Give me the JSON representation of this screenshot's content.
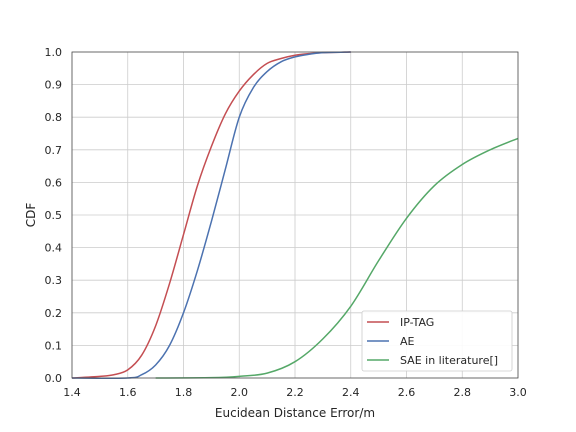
{
  "chart_data": {
    "type": "line",
    "title": "",
    "xlabel": "Eucidean Distance Error/m",
    "ylabel": "CDF",
    "xlim": [
      1.4,
      3.0
    ],
    "ylim": [
      0.0,
      1.0
    ],
    "x_ticks": [
      "1.4",
      "1.6",
      "1.8",
      "2.0",
      "2.2",
      "2.4",
      "2.6",
      "2.8",
      "3.0"
    ],
    "y_ticks": [
      "0.0",
      "0.1",
      "0.2",
      "0.3",
      "0.4",
      "0.5",
      "0.6",
      "0.7",
      "0.8",
      "0.9",
      "1.0"
    ],
    "grid": true,
    "legend_position": "bottom-right",
    "series": [
      {
        "name": "IP-TAG",
        "color": "#c44e52",
        "x": [
          1.4,
          1.5,
          1.55,
          1.6,
          1.65,
          1.7,
          1.75,
          1.8,
          1.85,
          1.9,
          1.95,
          2.0,
          2.05,
          2.1,
          2.15,
          2.2,
          2.25,
          2.3,
          2.4
        ],
        "y": [
          0.0,
          0.005,
          0.01,
          0.025,
          0.07,
          0.16,
          0.29,
          0.44,
          0.59,
          0.71,
          0.81,
          0.88,
          0.93,
          0.965,
          0.98,
          0.99,
          0.995,
          0.998,
          1.0
        ]
      },
      {
        "name": "AE",
        "color": "#4c72b0",
        "x": [
          1.4,
          1.6,
          1.65,
          1.7,
          1.75,
          1.8,
          1.85,
          1.9,
          1.95,
          2.0,
          2.05,
          2.1,
          2.15,
          2.2,
          2.25,
          2.3,
          2.4
        ],
        "y": [
          0.0,
          0.0,
          0.01,
          0.04,
          0.1,
          0.2,
          0.33,
          0.48,
          0.64,
          0.8,
          0.89,
          0.94,
          0.97,
          0.985,
          0.993,
          0.998,
          1.0
        ]
      },
      {
        "name": "SAE in literature[]",
        "color": "#55a868",
        "x": [
          1.7,
          1.9,
          2.0,
          2.1,
          2.2,
          2.3,
          2.4,
          2.5,
          2.6,
          2.7,
          2.8,
          2.9,
          3.0
        ],
        "y": [
          0.0,
          0.001,
          0.005,
          0.015,
          0.05,
          0.12,
          0.22,
          0.36,
          0.49,
          0.59,
          0.655,
          0.7,
          0.735
        ]
      }
    ]
  }
}
